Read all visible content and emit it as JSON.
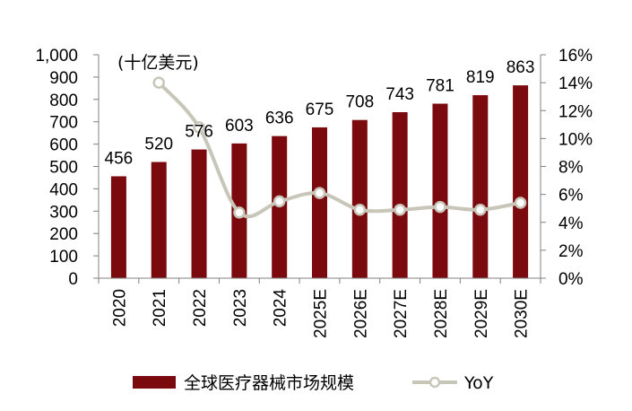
{
  "chart_data": {
    "type": "bar+line",
    "unit_label": "(十亿美元)",
    "categories": [
      "2020",
      "2021",
      "2022",
      "2023",
      "2024",
      "2025E",
      "2026E",
      "2027E",
      "2028E",
      "2029E",
      "2030E"
    ],
    "series": [
      {
        "name": "全球医疗器械市场规模",
        "type": "bar",
        "axis": "left",
        "values": [
          456,
          520,
          576,
          603,
          636,
          675,
          708,
          743,
          781,
          819,
          863
        ],
        "data_labels": [
          "456",
          "520",
          "576",
          "603",
          "636",
          "675",
          "708",
          "743",
          "781",
          "819",
          "863"
        ]
      },
      {
        "name": "YoY",
        "type": "line",
        "axis": "right",
        "values": [
          null,
          14.0,
          10.8,
          4.7,
          5.5,
          6.1,
          4.9,
          4.9,
          5.1,
          4.9,
          5.4
        ]
      }
    ],
    "y_left": {
      "min": 0,
      "max": 1000,
      "step": 100,
      "tick_labels": [
        "0",
        "100",
        "200",
        "300",
        "400",
        "500",
        "600",
        "700",
        "800",
        "900",
        "1,000"
      ]
    },
    "y_right": {
      "min": 0,
      "max": 16,
      "step": 2,
      "tick_labels": [
        "0%",
        "2%",
        "4%",
        "6%",
        "8%",
        "10%",
        "12%",
        "14%",
        "16%"
      ]
    },
    "colors": {
      "bar": "#7b0a0f",
      "line": "#c8c6b8",
      "marker_fill": "#ffffff",
      "axis": "#808080"
    },
    "legend_position": "bottom",
    "grid": false
  }
}
